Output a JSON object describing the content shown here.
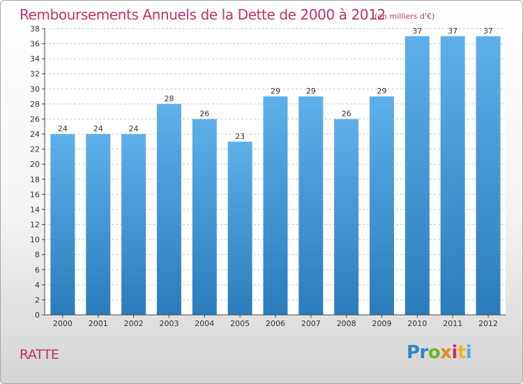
{
  "header": {
    "title": "Remboursements Annuels de la Dette de 2000 à 2012",
    "subtitle": "(en milliers d'€)"
  },
  "footer": {
    "commune": "RATTE",
    "logo_text": "Proxiti",
    "logo_parts": [
      "Pr",
      "o",
      "x",
      "i",
      "t",
      "i"
    ]
  },
  "colors": {
    "title": "#c0306a",
    "bar_top": "#5eb0ea",
    "bar_bottom": "#2a7cbc",
    "grid": "#c8c8c8",
    "axis": "#444444"
  },
  "chart_data": {
    "type": "bar",
    "title": "Remboursements Annuels de la Dette de 2000 à 2012",
    "subtitle": "(en milliers d'€)",
    "xlabel": "",
    "ylabel": "",
    "categories": [
      "2000",
      "2001",
      "2002",
      "2003",
      "2004",
      "2005",
      "2006",
      "2007",
      "2008",
      "2009",
      "2010",
      "2011",
      "2012"
    ],
    "values": [
      24,
      24,
      24,
      28,
      26,
      23,
      29,
      29,
      26,
      29,
      37,
      37,
      37
    ],
    "ylim": [
      0,
      38
    ],
    "yticks": [
      0,
      2,
      4,
      6,
      8,
      10,
      12,
      14,
      16,
      18,
      20,
      22,
      24,
      26,
      28,
      30,
      32,
      34,
      36,
      38
    ],
    "data_labels": true,
    "grid": "horizontal dashed",
    "legend": "none"
  }
}
